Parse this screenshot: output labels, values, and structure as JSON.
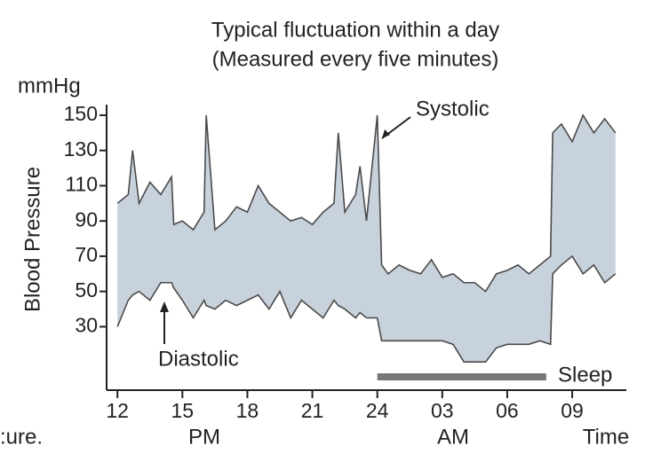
{
  "chart_data": {
    "type": "band",
    "title": "Typical fluctuation within a day",
    "subtitle": "(Measured every five minutes)",
    "y_unit": "mmHg",
    "y_label": "Blood Pressure",
    "x_label": "Time",
    "period_labels": [
      "PM",
      "AM"
    ],
    "annotations": {
      "systolic": "Systolic",
      "diastolic": "Diastolic",
      "sleep": "Sleep"
    },
    "caption_fragment": ":ure.",
    "sleep_span": [
      24,
      31.8
    ],
    "x": [
      12,
      12.5,
      12.7,
      13,
      13.5,
      14,
      14.5,
      14.6,
      15,
      15.5,
      16,
      16.1,
      16.5,
      17,
      17.5,
      18,
      18.5,
      19,
      19.5,
      20,
      20.5,
      21,
      21.5,
      22,
      22.2,
      22.5,
      23,
      23.2,
      23.5,
      24,
      24.2,
      24.5,
      25,
      25.5,
      26,
      26.5,
      27,
      27.5,
      28,
      28.5,
      29,
      29.5,
      30,
      30.5,
      31,
      31.5,
      32,
      32.1,
      32.5,
      33,
      33.5,
      34,
      34.5,
      35
    ],
    "series": [
      {
        "name": "Systolic",
        "color": "#4a4a4a",
        "values": [
          100,
          105,
          130,
          100,
          112,
          105,
          115,
          88,
          90,
          85,
          95,
          150,
          85,
          90,
          98,
          95,
          110,
          100,
          95,
          90,
          92,
          88,
          95,
          100,
          140,
          95,
          105,
          121,
          90,
          150,
          65,
          60,
          65,
          62,
          60,
          68,
          58,
          60,
          55,
          55,
          50,
          60,
          62,
          65,
          60,
          65,
          70,
          140,
          145,
          135,
          150,
          140,
          148,
          140
        ]
      },
      {
        "name": "Diastolic",
        "color": "#4a4a4a",
        "values": [
          30,
          45,
          48,
          50,
          45,
          55,
          55,
          52,
          45,
          35,
          45,
          42,
          40,
          45,
          42,
          45,
          48,
          40,
          50,
          35,
          45,
          40,
          35,
          45,
          42,
          40,
          35,
          38,
          35,
          35,
          22,
          22,
          22,
          22,
          22,
          22,
          22,
          20,
          10,
          10,
          10,
          18,
          20,
          20,
          20,
          22,
          20,
          60,
          65,
          70,
          60,
          65,
          55,
          60
        ]
      }
    ],
    "band_color": "#c8d2dc",
    "sleep_color": "#777777",
    "xlim": [
      11.5,
      35.5
    ],
    "ylim": [
      -6,
      156
    ],
    "xticks": [
      12,
      15,
      18,
      21,
      24,
      {
        "value": 27,
        "label": "03"
      },
      {
        "value": 30,
        "label": "06"
      },
      {
        "value": 33,
        "label": "09"
      }
    ],
    "yticks": [
      30,
      50,
      70,
      90,
      110,
      130,
      150
    ]
  }
}
